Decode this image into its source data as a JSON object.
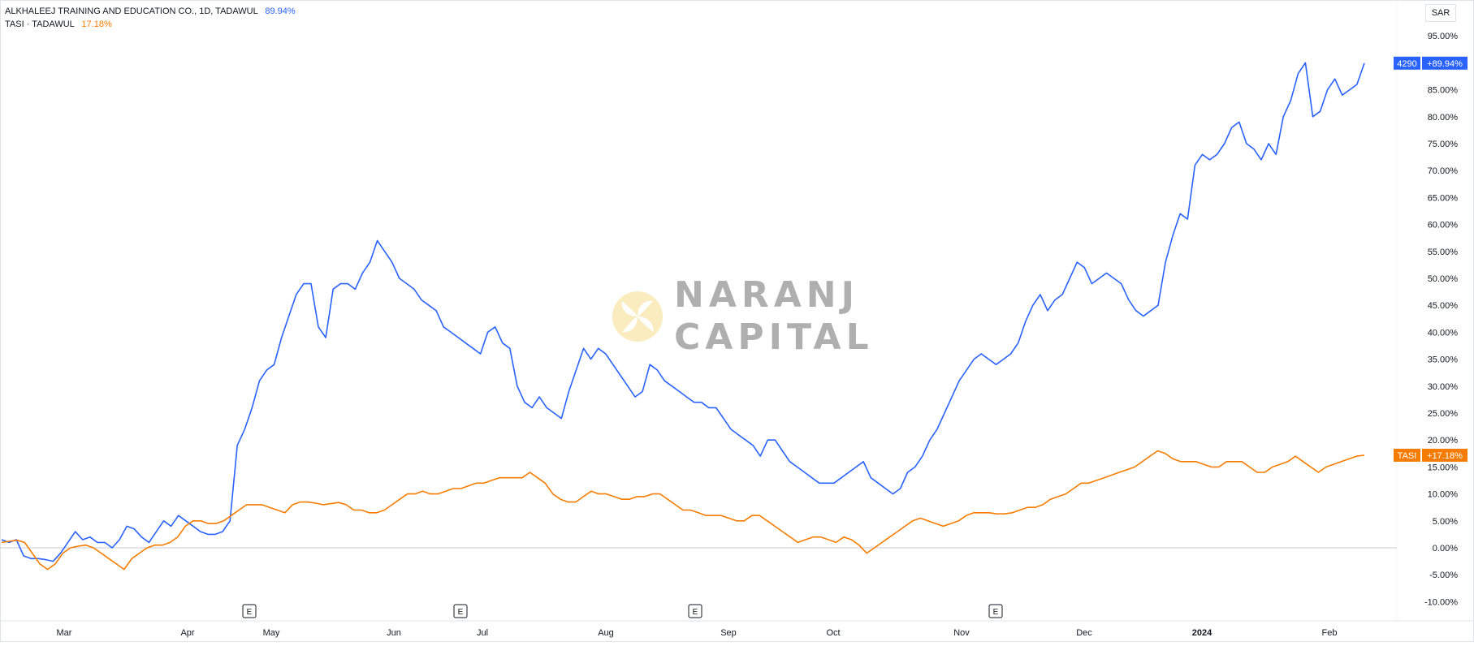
{
  "legend": {
    "main": {
      "label": "ALKHALEEJ TRAINING AND EDUCATION CO., 1D, TADAWUL",
      "value": "89.94%",
      "color": "#2962ff"
    },
    "compare": {
      "label": "TASI · TADAWUL",
      "value": "17.18%",
      "color": "#f57c00"
    }
  },
  "currency": "SAR",
  "watermark": {
    "line1": "NARANJ",
    "line2": "CAPITAL"
  },
  "price_scale": {
    "ticks": [
      "95.00%",
      "90.00%",
      "85.00%",
      "80.00%",
      "75.00%",
      "70.00%",
      "65.00%",
      "60.00%",
      "55.00%",
      "50.00%",
      "45.00%",
      "40.00%",
      "35.00%",
      "30.00%",
      "25.00%",
      "20.00%",
      "15.00%",
      "10.00%",
      "5.00%",
      "0.00%",
      "-5.00%",
      "-10.00%"
    ],
    "labels": [
      {
        "ticker": "4290",
        "value": "+89.94%",
        "color": "#2962ff"
      },
      {
        "ticker": "TASI",
        "value": "+17.18%",
        "color": "#f57c00"
      }
    ]
  },
  "time_scale": {
    "labels": [
      "Mar",
      "Apr",
      "May",
      "Jun",
      "Jul",
      "Aug",
      "Sep",
      "Oct",
      "Nov",
      "Dec",
      "2024",
      "Feb"
    ],
    "event_marker": "E",
    "event_count": 4
  },
  "chart_data": {
    "type": "line",
    "x_labels": [
      "Mar",
      "Apr",
      "May",
      "Jun",
      "Jul",
      "Aug",
      "Sep",
      "Oct",
      "Nov",
      "Dec",
      "2024",
      "Feb"
    ],
    "y_unit": "%",
    "ylim": [
      -12,
      96
    ],
    "grid": false,
    "legend_position": "top-left",
    "series": [
      {
        "name": "ALKHALEEJ TRAINING AND EDUCATION CO., 1D, TADAWUL",
        "color": "#2962ff",
        "last_value": 89.94,
        "values": [
          1.5,
          1.0,
          1.5,
          -1.5,
          -2,
          -2,
          -2.2,
          -2.5,
          -1,
          1,
          3,
          1.5,
          2,
          1,
          1,
          0,
          1.5,
          4,
          3.5,
          2,
          1,
          3,
          5,
          4,
          6,
          5,
          4,
          3,
          2.5,
          2.5,
          3,
          5,
          19,
          22,
          26,
          31,
          33,
          34,
          39,
          43,
          47,
          49,
          49,
          41,
          39,
          48,
          49,
          49,
          48,
          51,
          53,
          57,
          55,
          53,
          50,
          49,
          48,
          46,
          45,
          44,
          41,
          40,
          39,
          38,
          37,
          36,
          40,
          41,
          38,
          37,
          30,
          27,
          26,
          28,
          26,
          25,
          24,
          29,
          33,
          37,
          35,
          37,
          36,
          34,
          32,
          30,
          28,
          29,
          34,
          33,
          31,
          30,
          29,
          28,
          27,
          27,
          26,
          26,
          24,
          22,
          21,
          20,
          19,
          17,
          20,
          20,
          18,
          16,
          15,
          14,
          13,
          12,
          12,
          12,
          13,
          14,
          15,
          16,
          13,
          12,
          11,
          10,
          11,
          14,
          15,
          17,
          20,
          22,
          25,
          28,
          31,
          33,
          35,
          36,
          35,
          34,
          35,
          36,
          38,
          42,
          45,
          47,
          44,
          46,
          47,
          50,
          53,
          52,
          49,
          50,
          51,
          50,
          49,
          46,
          44,
          43,
          44,
          45,
          53,
          58,
          62,
          61,
          71,
          73,
          72,
          73,
          75,
          78,
          79,
          75,
          74,
          72,
          75,
          73,
          80,
          83,
          88,
          90,
          80,
          81,
          85,
          87,
          84,
          85,
          86,
          89.94
        ]
      },
      {
        "name": "TASI · TADAWUL",
        "color": "#f57c00",
        "last_value": 17.18,
        "values": [
          1,
          1.2,
          1.4,
          1,
          -1,
          -3,
          -4,
          -3,
          -1,
          0,
          0.3,
          0.5,
          0,
          -1,
          -2,
          -3,
          -4,
          -2,
          -1,
          0,
          0.5,
          0.5,
          1,
          2,
          4,
          5,
          5,
          4.5,
          4.5,
          5,
          6,
          7,
          8,
          8,
          8,
          7.5,
          7,
          6.5,
          8,
          8.5,
          8.5,
          8.3,
          8,
          8.2,
          8.4,
          8,
          7,
          7,
          6.5,
          6.5,
          7,
          8,
          9,
          10,
          10,
          10.5,
          10,
          10,
          10.5,
          11,
          11,
          11.5,
          12,
          12,
          12.5,
          13,
          13,
          13,
          13,
          14,
          13,
          12,
          10,
          9,
          8.5,
          8.5,
          9.5,
          10.5,
          10,
          10,
          9.5,
          9,
          9,
          9.5,
          9.5,
          10,
          10,
          9,
          8,
          7,
          7,
          6.5,
          6,
          6,
          6,
          5.5,
          5,
          5,
          6,
          6,
          5,
          4,
          3,
          2,
          1,
          1.5,
          2,
          2,
          1.5,
          1,
          2,
          1.5,
          0.5,
          -1,
          0,
          1,
          2,
          3,
          4,
          5,
          5.5,
          5,
          4.5,
          4,
          4.5,
          5,
          6,
          6.5,
          6.5,
          6.5,
          6.3,
          6.3,
          6.5,
          7,
          7.5,
          7.5,
          8,
          9,
          9.5,
          10,
          11,
          12,
          12,
          12.5,
          13,
          13.5,
          14,
          14.5,
          15,
          16,
          17,
          18,
          17.5,
          16.5,
          16,
          16,
          16,
          15.5,
          15,
          15,
          16,
          16,
          16,
          15,
          14,
          14,
          15,
          15.5,
          16,
          17,
          16,
          15,
          14,
          15,
          15.5,
          16,
          16.5,
          17,
          17.18
        ]
      }
    ]
  }
}
